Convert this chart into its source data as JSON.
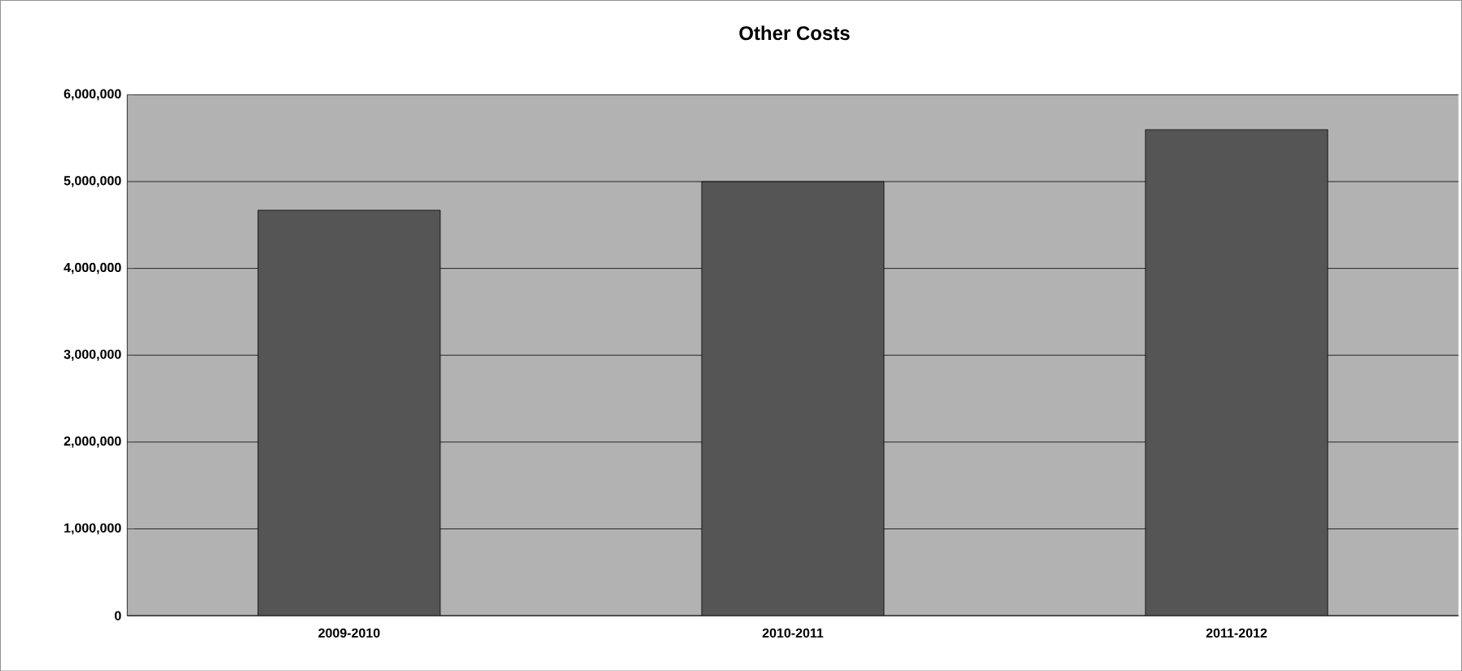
{
  "chart_data": {
    "type": "bar",
    "title": "Other Costs",
    "categories": [
      "2009-2010",
      "2010-2011",
      "2011-2012"
    ],
    "values": [
      4670000,
      5000000,
      5600000
    ],
    "color": "#555555",
    "ylim": [
      0,
      6000000
    ],
    "yticks": [
      {
        "value": 0,
        "label": "0"
      },
      {
        "value": 1000000,
        "label": "1,000,000"
      },
      {
        "value": 2000000,
        "label": "2,000,000"
      },
      {
        "value": 3000000,
        "label": "3,000,000"
      },
      {
        "value": 4000000,
        "label": "4,000,000"
      },
      {
        "value": 5000000,
        "label": "5,000,000"
      },
      {
        "value": 6000000,
        "label": "6,000,000"
      }
    ],
    "grid": "y"
  }
}
